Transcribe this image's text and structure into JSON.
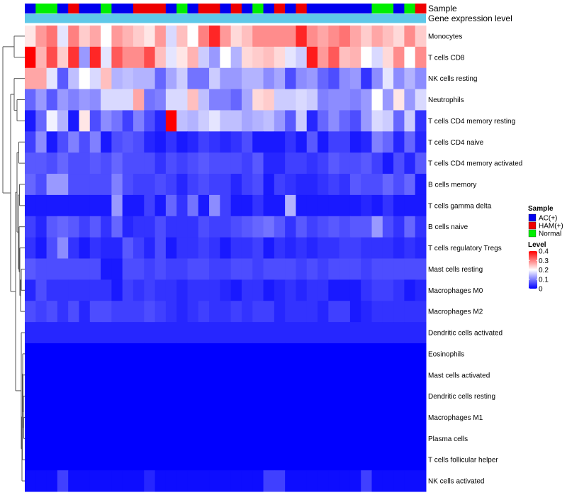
{
  "chart_data": {
    "type": "heatmap",
    "annotation_tracks": [
      {
        "name": "Sample",
        "label": "Sample"
      },
      {
        "name": "Gene expression level",
        "label": "Gene expression level"
      }
    ],
    "sample_groups": [
      "AC",
      "Normal",
      "Normal",
      "AC",
      "HAM",
      "AC",
      "AC",
      "Normal",
      "AC",
      "AC",
      "HAM",
      "HAM",
      "HAM",
      "AC",
      "Normal",
      "AC",
      "HAM",
      "HAM",
      "AC",
      "HAM",
      "AC",
      "Normal",
      "AC",
      "HAM",
      "AC",
      "HAM",
      "AC",
      "AC",
      "AC",
      "AC",
      "AC",
      "AC",
      "Normal",
      "Normal",
      "AC",
      "Normal",
      "HAM"
    ],
    "rows": [
      {
        "label": "Monocytes",
        "values": [
          0.22,
          0.28,
          0.31,
          0.18,
          0.3,
          0.24,
          0.27,
          0.2,
          0.28,
          0.26,
          0.24,
          0.22,
          0.28,
          0.17,
          0.25,
          0.2,
          0.3,
          0.37,
          0.28,
          0.23,
          0.25,
          0.29,
          0.29,
          0.29,
          0.29,
          0.37,
          0.29,
          0.27,
          0.29,
          0.31,
          0.27,
          0.24,
          0.27,
          0.25,
          0.23,
          0.29,
          0.24
        ]
      },
      {
        "label": "T cells CD8",
        "values": [
          0.4,
          0.26,
          0.34,
          0.24,
          0.36,
          0.12,
          0.37,
          0.18,
          0.33,
          0.29,
          0.29,
          0.34,
          0.25,
          0.18,
          0.22,
          0.26,
          0.16,
          0.12,
          0.2,
          0.14,
          0.23,
          0.24,
          0.25,
          0.23,
          0.18,
          0.16,
          0.38,
          0.28,
          0.33,
          0.25,
          0.26,
          0.2,
          0.17,
          0.23,
          0.29,
          0.2,
          0.29
        ]
      },
      {
        "label": "NK cells resting",
        "values": [
          0.27,
          0.27,
          0.18,
          0.07,
          0.15,
          0.2,
          0.17,
          0.25,
          0.14,
          0.15,
          0.14,
          0.14,
          0.08,
          0.13,
          0.16,
          0.09,
          0.09,
          0.16,
          0.12,
          0.12,
          0.14,
          0.14,
          0.11,
          0.13,
          0.06,
          0.11,
          0.12,
          0.08,
          0.06,
          0.11,
          0.12,
          0.04,
          0.11,
          0.18,
          0.11,
          0.14,
          0.11
        ]
      },
      {
        "label": "Neutrophils",
        "values": [
          0.08,
          0.12,
          0.07,
          0.12,
          0.1,
          0.12,
          0.11,
          0.17,
          0.17,
          0.17,
          0.27,
          0.09,
          0.1,
          0.17,
          0.17,
          0.25,
          0.15,
          0.1,
          0.1,
          0.08,
          0.13,
          0.23,
          0.24,
          0.16,
          0.16,
          0.17,
          0.16,
          0.1,
          0.11,
          0.11,
          0.1,
          0.12,
          0.2,
          0.12,
          0.22,
          0.12,
          0.17
        ]
      },
      {
        "label": "T cells CD4 memory resting",
        "values": [
          0.02,
          0.08,
          0.19,
          0.14,
          0.02,
          0.22,
          0.06,
          0.11,
          0.09,
          0.05,
          0.1,
          0.06,
          0.03,
          0.4,
          0.15,
          0.14,
          0.16,
          0.18,
          0.15,
          0.15,
          0.13,
          0.14,
          0.15,
          0.12,
          0.07,
          0.16,
          0.03,
          0.08,
          0.11,
          0.08,
          0.06,
          0.12,
          0.17,
          0.16,
          0.08,
          0.16,
          0.04
        ]
      },
      {
        "label": "T cells CD4 naive",
        "values": [
          0.05,
          0.11,
          0.02,
          0.06,
          0.1,
          0.06,
          0.1,
          0.02,
          0.06,
          0.07,
          0.06,
          0.03,
          0.02,
          0.04,
          0.02,
          0.03,
          0.05,
          0.04,
          0.03,
          0.04,
          0.06,
          0.02,
          0.02,
          0.02,
          0.04,
          0.02,
          0.07,
          0.02,
          0.05,
          0.05,
          0.02,
          0.03,
          0.1,
          0.08,
          0.03,
          0.08,
          0.03
        ]
      },
      {
        "label": "T cells CD4 memory activated",
        "values": [
          0.07,
          0.07,
          0.06,
          0.08,
          0.06,
          0.06,
          0.07,
          0.06,
          0.08,
          0.06,
          0.06,
          0.06,
          0.04,
          0.06,
          0.05,
          0.06,
          0.07,
          0.06,
          0.06,
          0.06,
          0.05,
          0.07,
          0.03,
          0.03,
          0.05,
          0.05,
          0.04,
          0.05,
          0.07,
          0.06,
          0.06,
          0.07,
          0.05,
          0.02,
          0.06,
          0.03,
          0.07
        ]
      },
      {
        "label": "B cells memory",
        "values": [
          0.08,
          0.06,
          0.12,
          0.12,
          0.06,
          0.06,
          0.06,
          0.06,
          0.1,
          0.06,
          0.05,
          0.05,
          0.06,
          0.05,
          0.03,
          0.05,
          0.06,
          0.05,
          0.05,
          0.03,
          0.05,
          0.06,
          0.02,
          0.05,
          0.04,
          0.03,
          0.03,
          0.04,
          0.05,
          0.04,
          0.07,
          0.06,
          0.06,
          0.08,
          0.06,
          0.08,
          0.02
        ]
      },
      {
        "label": "T cells gamma delta",
        "values": [
          0.02,
          0.02,
          0.02,
          0.02,
          0.02,
          0.02,
          0.02,
          0.02,
          0.12,
          0.02,
          0.02,
          0.05,
          0.02,
          0.08,
          0.04,
          0.09,
          0.02,
          0.11,
          0.05,
          0.02,
          0.02,
          0.04,
          0.02,
          0.02,
          0.14,
          0.02,
          0.02,
          0.02,
          0.02,
          0.02,
          0.02,
          0.03,
          0.02,
          0.04,
          0.02,
          0.02,
          0.02
        ]
      },
      {
        "label": "B cells naive",
        "values": [
          0.05,
          0.03,
          0.07,
          0.08,
          0.07,
          0.05,
          0.07,
          0.04,
          0.08,
          0.03,
          0.04,
          0.04,
          0.06,
          0.04,
          0.04,
          0.04,
          0.06,
          0.05,
          0.05,
          0.06,
          0.07,
          0.08,
          0.09,
          0.07,
          0.04,
          0.07,
          0.05,
          0.06,
          0.07,
          0.06,
          0.07,
          0.07,
          0.12,
          0.06,
          0.04,
          0.08,
          0.04
        ]
      },
      {
        "label": "T cells regulatory  Tregs",
        "values": [
          0.04,
          0.02,
          0.06,
          0.11,
          0.04,
          0.02,
          0.04,
          0.03,
          0.03,
          0.07,
          0.05,
          0.03,
          0.06,
          0.02,
          0.04,
          0.04,
          0.05,
          0.04,
          0.02,
          0.04,
          0.04,
          0.05,
          0.02,
          0.04,
          0.03,
          0.04,
          0.03,
          0.04,
          0.04,
          0.05,
          0.05,
          0.04,
          0.04,
          0.04,
          0.03,
          0.04,
          0.03
        ]
      },
      {
        "label": "Mast cells resting",
        "values": [
          0.07,
          0.06,
          0.06,
          0.06,
          0.06,
          0.06,
          0.06,
          0.02,
          0.02,
          0.06,
          0.06,
          0.05,
          0.06,
          0.05,
          0.05,
          0.06,
          0.06,
          0.05,
          0.05,
          0.06,
          0.06,
          0.05,
          0.06,
          0.06,
          0.06,
          0.05,
          0.06,
          0.05,
          0.06,
          0.06,
          0.06,
          0.05,
          0.06,
          0.06,
          0.06,
          0.06,
          0.06
        ]
      },
      {
        "label": "Macrophages M0",
        "values": [
          0.03,
          0.06,
          0.04,
          0.04,
          0.04,
          0.04,
          0.04,
          0.04,
          0.02,
          0.05,
          0.04,
          0.05,
          0.04,
          0.04,
          0.03,
          0.04,
          0.04,
          0.04,
          0.03,
          0.02,
          0.04,
          0.04,
          0.02,
          0.03,
          0.04,
          0.03,
          0.04,
          0.04,
          0.02,
          0.02,
          0.02,
          0.04,
          0.05,
          0.05,
          0.04,
          0.02,
          0.03
        ]
      },
      {
        "label": "Macrophages M2",
        "values": [
          0.06,
          0.05,
          0.06,
          0.04,
          0.06,
          0.03,
          0.06,
          0.06,
          0.05,
          0.05,
          0.05,
          0.06,
          0.05,
          0.04,
          0.03,
          0.04,
          0.05,
          0.04,
          0.04,
          0.05,
          0.04,
          0.05,
          0.05,
          0.03,
          0.04,
          0.04,
          0.04,
          0.03,
          0.05,
          0.05,
          0.02,
          0.03,
          0.04,
          0.04,
          0.04,
          0.04,
          0.04
        ]
      },
      {
        "label": "Dendritic cells activated",
        "values": [
          0.03,
          0.03,
          0.03,
          0.03,
          0.03,
          0.03,
          0.03,
          0.03,
          0.03,
          0.03,
          0.03,
          0.03,
          0.03,
          0.03,
          0.03,
          0.03,
          0.03,
          0.03,
          0.03,
          0.03,
          0.03,
          0.03,
          0.03,
          0.03,
          0.03,
          0.03,
          0.03,
          0.03,
          0.03,
          0.03,
          0.03,
          0.03,
          0.03,
          0.03,
          0.03,
          0.03,
          0.03
        ]
      },
      {
        "label": "Eosinophils",
        "values": [
          0.0,
          0.0,
          0.0,
          0.0,
          0.0,
          0.0,
          0.0,
          0.0,
          0.0,
          0.0,
          0.0,
          0.0,
          0.0,
          0.0,
          0.0,
          0.0,
          0.0,
          0.0,
          0.0,
          0.0,
          0.0,
          0.0,
          0.0,
          0.0,
          0.0,
          0.0,
          0.0,
          0.0,
          0.0,
          0.0,
          0.0,
          0.0,
          0.0,
          0.0,
          0.0,
          0.0,
          0.0
        ]
      },
      {
        "label": "Mast cells activated",
        "values": [
          0.0,
          0.0,
          0.0,
          0.0,
          0.0,
          0.0,
          0.0,
          0.0,
          0.0,
          0.0,
          0.0,
          0.0,
          0.0,
          0.0,
          0.0,
          0.0,
          0.0,
          0.0,
          0.0,
          0.0,
          0.0,
          0.0,
          0.0,
          0.0,
          0.0,
          0.0,
          0.0,
          0.0,
          0.0,
          0.0,
          0.0,
          0.0,
          0.0,
          0.0,
          0.0,
          0.0,
          0.0
        ]
      },
      {
        "label": "Dendritic cells resting",
        "values": [
          0.0,
          0.0,
          0.0,
          0.0,
          0.0,
          0.0,
          0.0,
          0.0,
          0.0,
          0.0,
          0.0,
          0.0,
          0.0,
          0.0,
          0.0,
          0.0,
          0.0,
          0.0,
          0.0,
          0.0,
          0.0,
          0.0,
          0.0,
          0.0,
          0.0,
          0.0,
          0.0,
          0.0,
          0.0,
          0.0,
          0.0,
          0.0,
          0.0,
          0.0,
          0.0,
          0.0,
          0.0
        ]
      },
      {
        "label": "Macrophages M1",
        "values": [
          0.0,
          0.0,
          0.0,
          0.0,
          0.0,
          0.0,
          0.0,
          0.0,
          0.0,
          0.0,
          0.0,
          0.0,
          0.0,
          0.0,
          0.0,
          0.0,
          0.0,
          0.0,
          0.0,
          0.0,
          0.0,
          0.0,
          0.0,
          0.0,
          0.0,
          0.0,
          0.0,
          0.0,
          0.0,
          0.0,
          0.0,
          0.0,
          0.0,
          0.0,
          0.0,
          0.0,
          0.0
        ]
      },
      {
        "label": "Plasma cells",
        "values": [
          0.0,
          0.0,
          0.0,
          0.0,
          0.0,
          0.0,
          0.0,
          0.0,
          0.0,
          0.0,
          0.0,
          0.0,
          0.0,
          0.0,
          0.0,
          0.0,
          0.0,
          0.0,
          0.0,
          0.0,
          0.0,
          0.0,
          0.0,
          0.0,
          0.0,
          0.0,
          0.0,
          0.0,
          0.0,
          0.0,
          0.0,
          0.0,
          0.0,
          0.0,
          0.0,
          0.0,
          0.0
        ]
      },
      {
        "label": "T cells follicular helper",
        "values": [
          0.0,
          0.0,
          0.0,
          0.0,
          0.0,
          0.0,
          0.0,
          0.0,
          0.0,
          0.0,
          0.0,
          0.0,
          0.0,
          0.0,
          0.0,
          0.0,
          0.0,
          0.0,
          0.0,
          0.0,
          0.0,
          0.0,
          0.0,
          0.0,
          0.0,
          0.0,
          0.0,
          0.0,
          0.0,
          0.0,
          0.0,
          0.0,
          0.0,
          0.0,
          0.0,
          0.0,
          0.0
        ]
      },
      {
        "label": "NK cells activated",
        "values": [
          0.01,
          0.01,
          0.01,
          0.05,
          0.01,
          0.01,
          0.01,
          0.01,
          0.01,
          0.01,
          0.01,
          0.03,
          0.01,
          0.01,
          0.01,
          0.01,
          0.01,
          0.01,
          0.01,
          0.01,
          0.01,
          0.01,
          0.05,
          0.05,
          0.01,
          0.01,
          0.01,
          0.01,
          0.01,
          0.01,
          0.01,
          0.05,
          0.01,
          0.01,
          0.01,
          0.01,
          0.01
        ]
      }
    ],
    "color_scale": {
      "min": 0,
      "mid": 0.2,
      "max": 0.4,
      "low": "#0000FF",
      "midcolor": "#FFFFFF",
      "high": "#FF0000"
    },
    "colorbar": {
      "title": "Level",
      "ticks": [
        0.4,
        0.3,
        0.2,
        0.1,
        0
      ],
      "tick_labels": [
        "0.4",
        "0.3",
        "0.2",
        "0.1",
        "0"
      ]
    },
    "sample_legend": {
      "title": "Sample",
      "entries": [
        {
          "key": "AC",
          "label": "AC(+)",
          "color": "#0000EE"
        },
        {
          "key": "HAM",
          "label": "HAM(+)",
          "color": "#EE0000"
        },
        {
          "key": "Normal",
          "label": "Normal",
          "color": "#00EE00"
        }
      ]
    },
    "gene_expression_color": "#5FC8E8",
    "dendrogram_color": "#555555"
  }
}
